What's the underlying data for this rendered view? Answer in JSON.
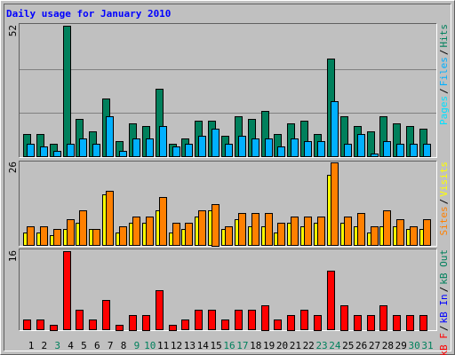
{
  "title": "Daily usage for January 2010",
  "chart_data": [
    {
      "type": "bar",
      "ylim": [
        0,
        52
      ],
      "yticks": [
        52
      ],
      "grid": true,
      "legend_separator": "/",
      "series": [
        {
          "name": "Hits",
          "color": "#00805c",
          "values": [
            9,
            9,
            5,
            52,
            15,
            10,
            23,
            6,
            13,
            12,
            27,
            5,
            7,
            14,
            14,
            8,
            16,
            15,
            18,
            9,
            13,
            14,
            9,
            39,
            16,
            12,
            10,
            16,
            13,
            12,
            11
          ]
        },
        {
          "name": "Files",
          "color": "#00b0ff",
          "values": [
            5,
            4,
            2,
            5,
            7,
            5,
            16,
            2,
            7,
            7,
            12,
            4,
            5,
            8,
            11,
            5,
            8,
            7,
            7,
            4,
            7,
            6,
            6,
            22,
            5,
            9,
            1,
            6,
            5,
            5,
            5
          ]
        },
        {
          "name": "Pages",
          "color": "#00e0ff"
        }
      ]
    },
    {
      "type": "bar",
      "ylim": [
        0,
        26
      ],
      "yticks": [
        26
      ],
      "grid": false,
      "legend_separator": "/",
      "series": [
        {
          "name": "Visits",
          "color": "#ffff00",
          "values": [
            4,
            4,
            3,
            5,
            7,
            5,
            16,
            4,
            7,
            7,
            11,
            4,
            5,
            9,
            11,
            5,
            8,
            6,
            6,
            4,
            7,
            6,
            7,
            22,
            7,
            6,
            4,
            6,
            6,
            5,
            5
          ]
        },
        {
          "name": "Sites",
          "color": "#ff8000",
          "values": [
            6,
            6,
            5,
            8,
            11,
            5,
            17,
            6,
            9,
            9,
            15,
            7,
            7,
            11,
            13,
            6,
            10,
            10,
            10,
            7,
            9,
            9,
            9,
            26,
            9,
            10,
            6,
            11,
            8,
            6,
            8
          ]
        }
      ]
    },
    {
      "type": "bar",
      "ylim": [
        0,
        16
      ],
      "yticks": [
        16
      ],
      "grid": false,
      "legend_separator": "/",
      "categories": [
        "1",
        "2",
        "3",
        "4",
        "5",
        "6",
        "7",
        "8",
        "9",
        "10",
        "11",
        "12",
        "13",
        "14",
        "15",
        "16",
        "17",
        "18",
        "19",
        "20",
        "21",
        "22",
        "23",
        "24",
        "25",
        "26",
        "27",
        "28",
        "29",
        "30",
        "31"
      ],
      "category_colors": [
        "#000000",
        "#000000",
        "#00805c",
        "#000000",
        "#000000",
        "#000000",
        "#000000",
        "#000000",
        "#00805c",
        "#00805c",
        "#000000",
        "#000000",
        "#000000",
        "#000000",
        "#000000",
        "#00805c",
        "#00805c",
        "#000000",
        "#000000",
        "#000000",
        "#000000",
        "#000000",
        "#00805c",
        "#00805c",
        "#000000",
        "#000000",
        "#000000",
        "#000000",
        "#000000",
        "#00805c",
        "#00805c"
      ],
      "series": [
        {
          "name": "kB Out",
          "color": "#00805c"
        },
        {
          "name": "kB In",
          "color": "#0000ff"
        },
        {
          "name": "kB F",
          "color": "#ff0000",
          "values": [
            2,
            2,
            1,
            16,
            4,
            2,
            6,
            1,
            3,
            3,
            8,
            1,
            2,
            4,
            4,
            2,
            4,
            4,
            5,
            2,
            3,
            4,
            3,
            12,
            5,
            3,
            3,
            5,
            3,
            3,
            3
          ]
        }
      ]
    }
  ]
}
